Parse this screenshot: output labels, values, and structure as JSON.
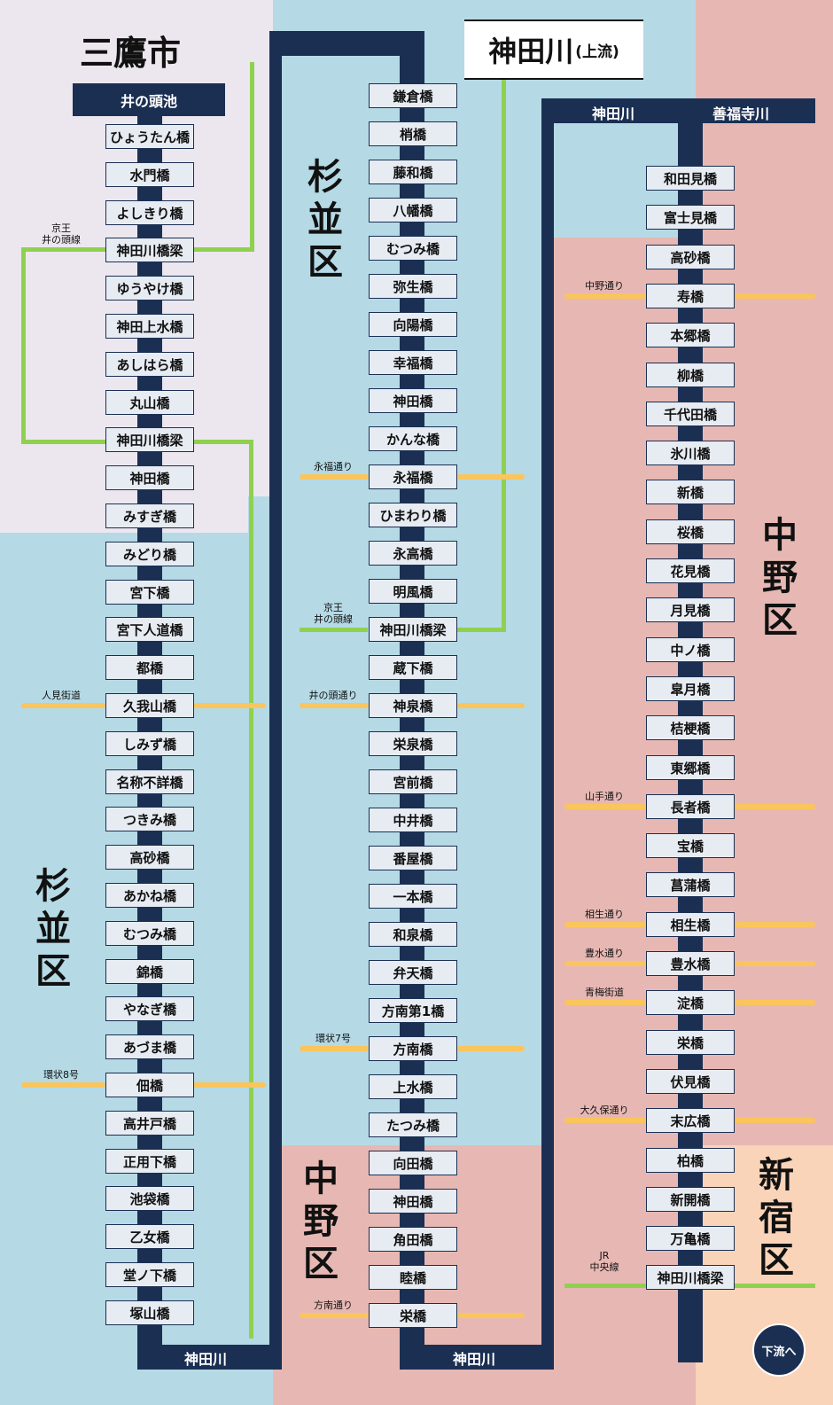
{
  "title": {
    "main": "神田川",
    "sub": "(上流)"
  },
  "regions": {
    "mitaka": "三鷹市",
    "suginami_left": "杉\n並\n区",
    "suginami_mid": "杉\n並\n区",
    "nakano_mid": "中\n野\n区",
    "nakano_right": "中\n野\n区",
    "shinjuku": "新\n宿\n区"
  },
  "river_labels": {
    "source": "井の頭池",
    "bottom_left": "神田川",
    "bottom_mid": "神田川",
    "top_right_kanda": "神田川",
    "top_right_zenpuku": "善福寺川"
  },
  "downstream_button": "下流へ",
  "columns": {
    "left": [
      "ひょうたん橋",
      "水門橋",
      "よしきり橋",
      "神田川橋梁",
      "ゆうやけ橋",
      "神田上水橋",
      "あしはら橋",
      "丸山橋",
      "神田川橋梁",
      "神田橋",
      "みすぎ橋",
      "みどり橋",
      "宮下橋",
      "宮下人道橋",
      "都橋",
      "久我山橋",
      "しみず橋",
      "名称不詳橋",
      "つきみ橋",
      "高砂橋",
      "あかね橋",
      "むつみ橋",
      "錦橋",
      "やなぎ橋",
      "あづま橋",
      "佃橋",
      "高井戸橋",
      "正用下橋",
      "池袋橋",
      "乙女橋",
      "堂ノ下橋",
      "塚山橋"
    ],
    "middle": [
      "鎌倉橋",
      "梢橋",
      "藤和橋",
      "八幡橋",
      "むつみ橋",
      "弥生橋",
      "向陽橋",
      "幸福橋",
      "神田橋",
      "かんな橋",
      "永福橋",
      "ひまわり橋",
      "永高橋",
      "明風橋",
      "神田川橋梁",
      "蔵下橋",
      "神泉橋",
      "栄泉橋",
      "宮前橋",
      "中井橋",
      "番屋橋",
      "一本橋",
      "和泉橋",
      "弁天橋",
      "方南第1橋",
      "方南橋",
      "上水橋",
      "たつみ橋",
      "向田橋",
      "神田橋",
      "角田橋",
      "睦橋",
      "栄橋"
    ],
    "right": [
      "和田見橋",
      "富士見橋",
      "高砂橋",
      "寿橋",
      "本郷橋",
      "柳橋",
      "千代田橋",
      "氷川橋",
      "新橋",
      "桜橋",
      "花見橋",
      "月見橋",
      "中ノ橋",
      "皐月橋",
      "桔梗橋",
      "東郷橋",
      "長者橋",
      "宝橋",
      "菖蒲橋",
      "相生橋",
      "豊水橋",
      "淀橋",
      "栄橋",
      "伏見橋",
      "末広橋",
      "柏橋",
      "新開橋",
      "万亀橋",
      "神田川橋梁"
    ]
  },
  "crossings": {
    "left": [
      {
        "label": "京王\n井の頭線",
        "row": 3,
        "type": "rail"
      },
      {
        "label": "人見街道",
        "row": 15,
        "type": "road"
      },
      {
        "label": "環状8号",
        "row": 25,
        "type": "road"
      }
    ],
    "middle": [
      {
        "label": "永福通り",
        "row": 10,
        "type": "road"
      },
      {
        "label": "京王\n井の頭線",
        "row": 14,
        "type": "rail"
      },
      {
        "label": "井の頭通り",
        "row": 16,
        "type": "road"
      },
      {
        "label": "環状7号",
        "row": 25,
        "type": "road"
      },
      {
        "label": "方南通り",
        "row": 32,
        "type": "road"
      }
    ],
    "right": [
      {
        "label": "中野通り",
        "row": 3,
        "type": "road"
      },
      {
        "label": "山手通り",
        "row": 16,
        "type": "road"
      },
      {
        "label": "相生通り",
        "row": 19,
        "type": "road"
      },
      {
        "label": "豊水通り",
        "row": 20,
        "type": "road"
      },
      {
        "label": "青梅街道",
        "row": 21,
        "type": "road"
      },
      {
        "label": "大久保通り",
        "row": 24,
        "type": "road"
      },
      {
        "label": "JR\n中央線",
        "row": 28,
        "type": "rail"
      }
    ]
  },
  "colors": {
    "river": "#1b2f53",
    "road": "#f9c55c",
    "rail": "#8fd14f",
    "mitaka_bg": "#ece7ef",
    "suginami_bg": "#b5dae5",
    "nakano_bg": "#e7b8b3",
    "shinjuku_bg": "#f9d4b9",
    "bridge_bg": "#e7ecf3"
  }
}
